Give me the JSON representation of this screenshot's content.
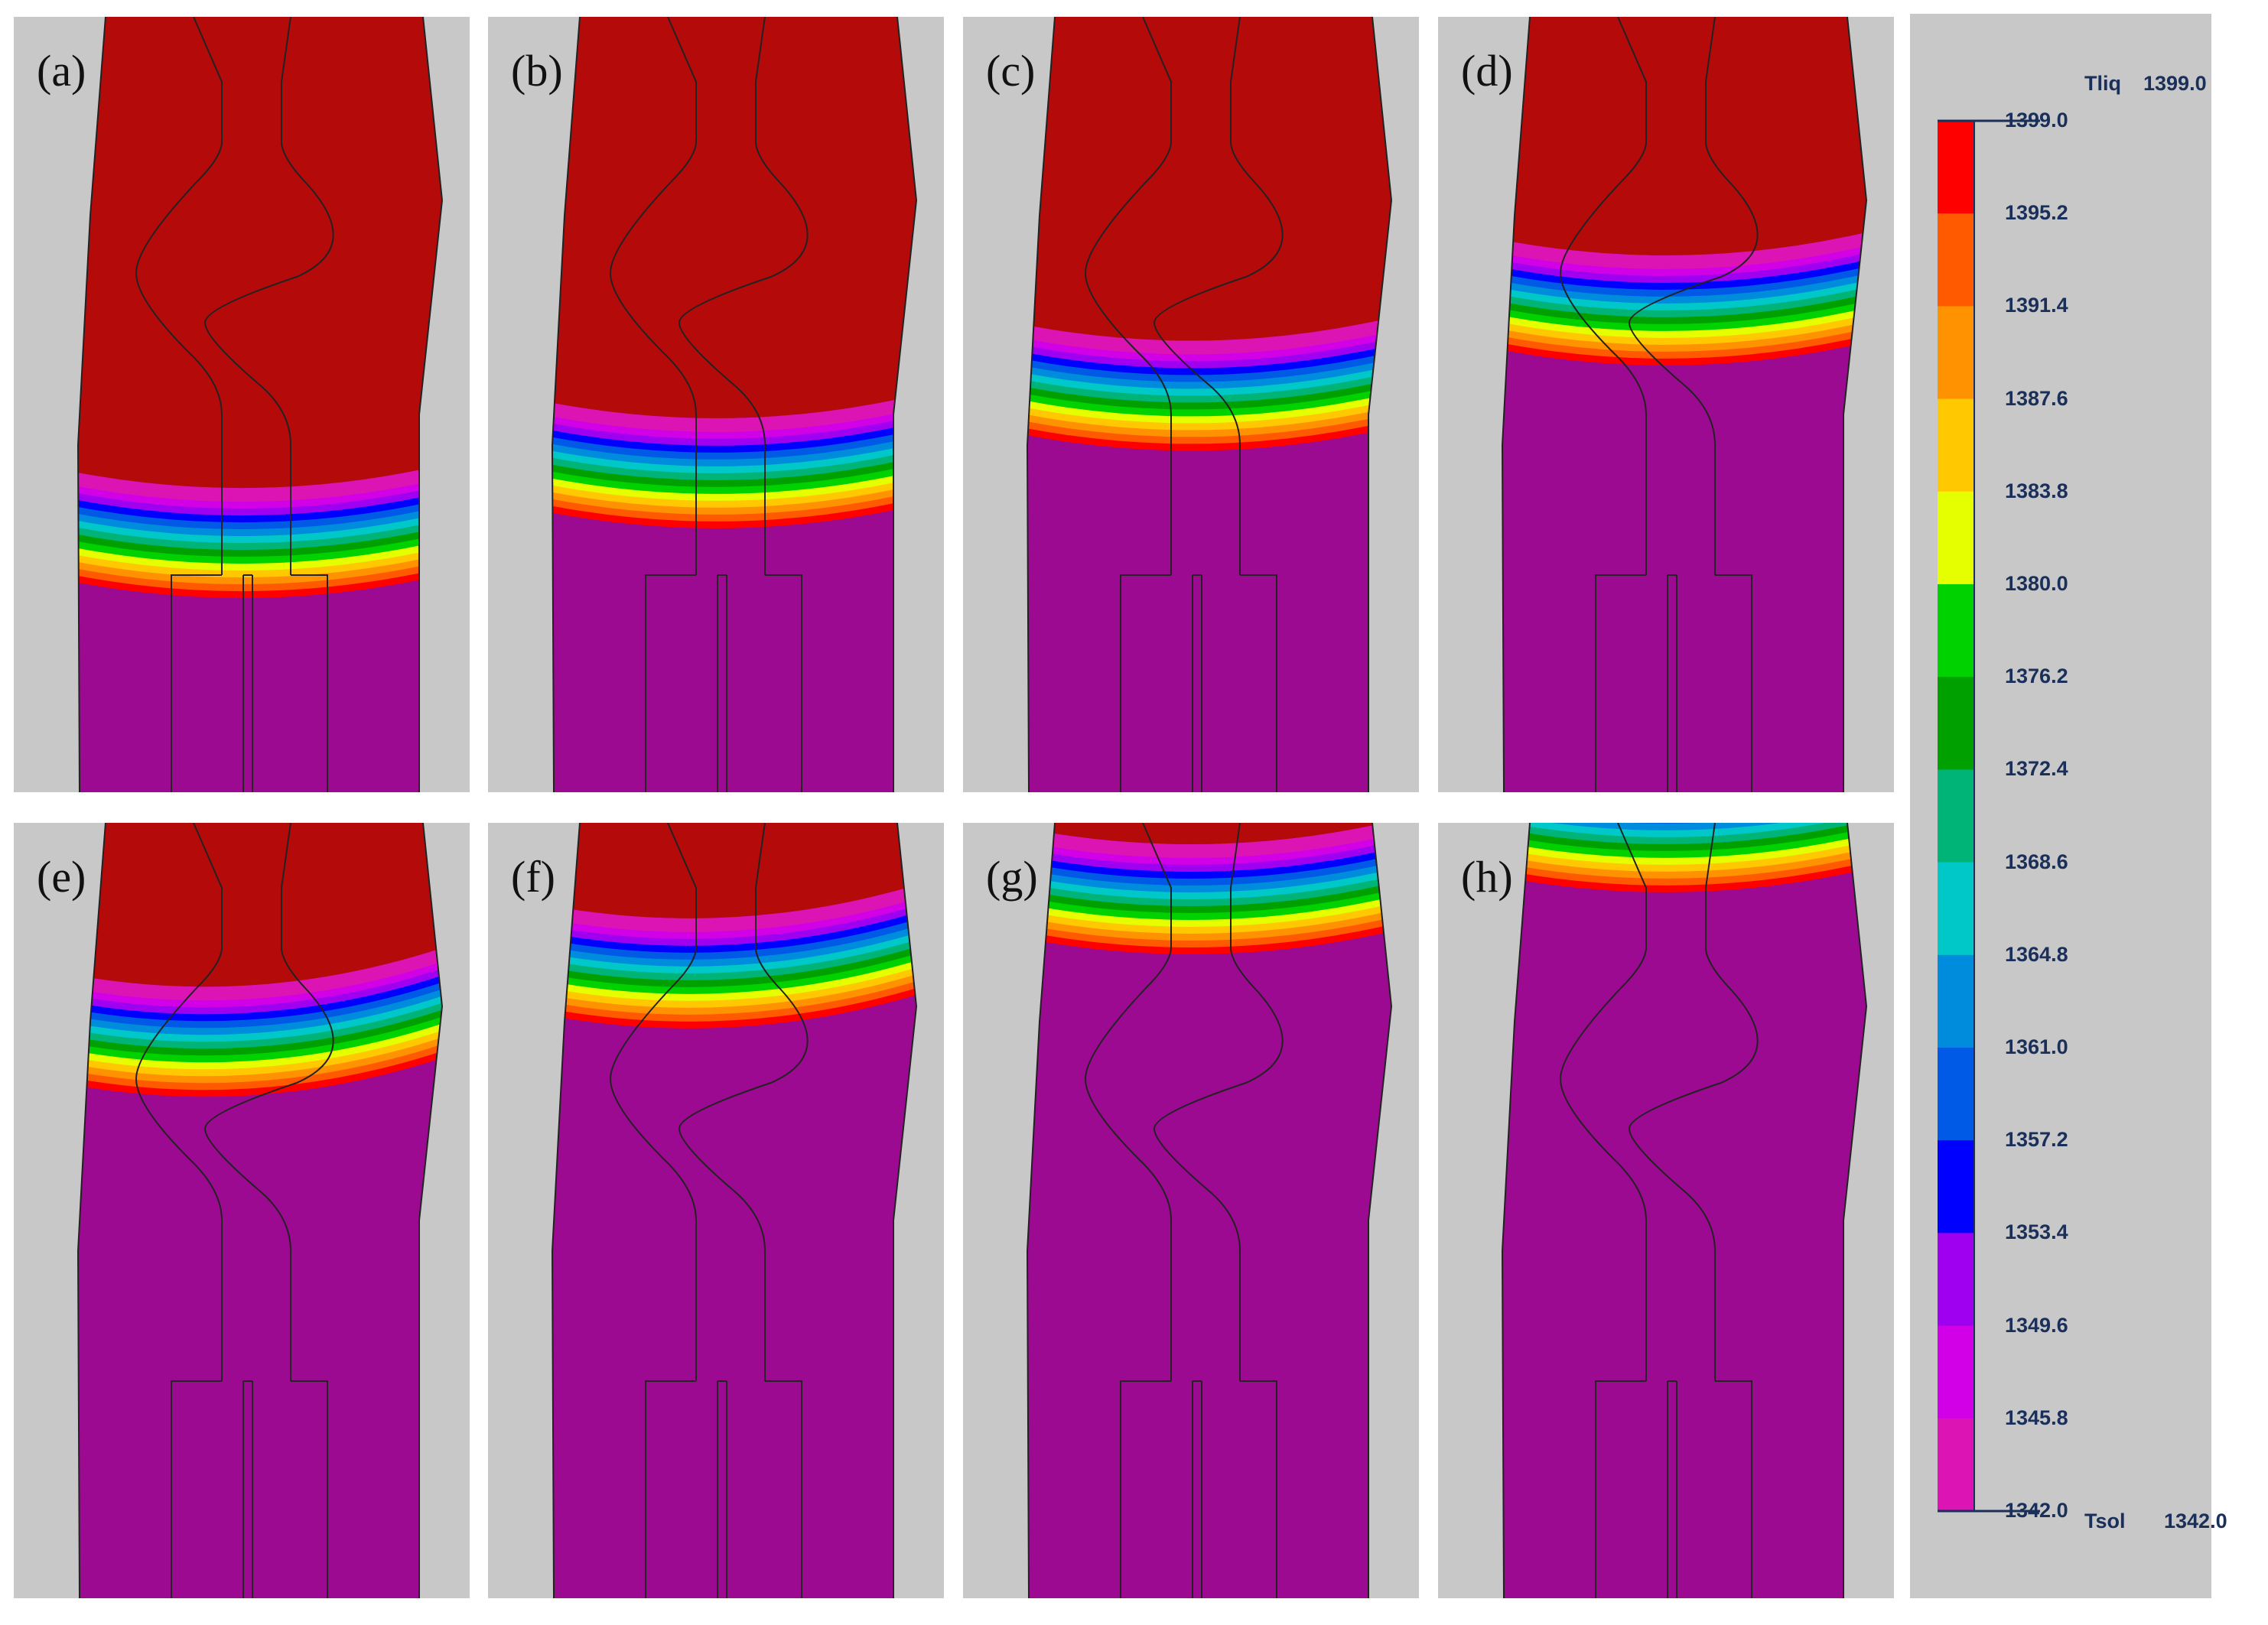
{
  "panels": [
    {
      "label": "(a)",
      "front": 0.72,
      "tilt": 0.0
    },
    {
      "label": "(b)",
      "front": 0.63,
      "tilt": 0.0
    },
    {
      "label": "(c)",
      "front": 0.53,
      "tilt": 0.0
    },
    {
      "label": "(d)",
      "front": 0.42,
      "tilt": 0.0
    },
    {
      "label": "(e)",
      "front": 0.33,
      "tilt": 0.03
    },
    {
      "label": "(f)",
      "front": 0.24,
      "tilt": 0.02
    },
    {
      "label": "(g)",
      "front": 0.14,
      "tilt": 0.0
    },
    {
      "label": "(h)",
      "front": 0.06,
      "tilt": 0.0
    }
  ],
  "legend": {
    "top_name": "Tliq",
    "top_value": "1399.0",
    "bottom_name": "Tsol",
    "bottom_value": "1342.0",
    "ticks": [
      "1399.0",
      "1395.2",
      "1391.4",
      "1387.6",
      "1383.8",
      "1380.0",
      "1376.2",
      "1372.4",
      "1368.6",
      "1364.8",
      "1361.0",
      "1357.2",
      "1353.4",
      "1349.6",
      "1345.8",
      "1342.0"
    ],
    "colors": [
      "#ff0000",
      "#ff5a00",
      "#ff9200",
      "#ffc800",
      "#e6ff00",
      "#00d200",
      "#00a000",
      "#00b478",
      "#00c8c8",
      "#008cdc",
      "#005ae6",
      "#0000ff",
      "#a000f0",
      "#d200e6",
      "#dc14b4"
    ]
  },
  "colors": {
    "liquid": "#b40a0a",
    "solid": "#9b0a91",
    "mould": "#c8c8c8"
  }
}
